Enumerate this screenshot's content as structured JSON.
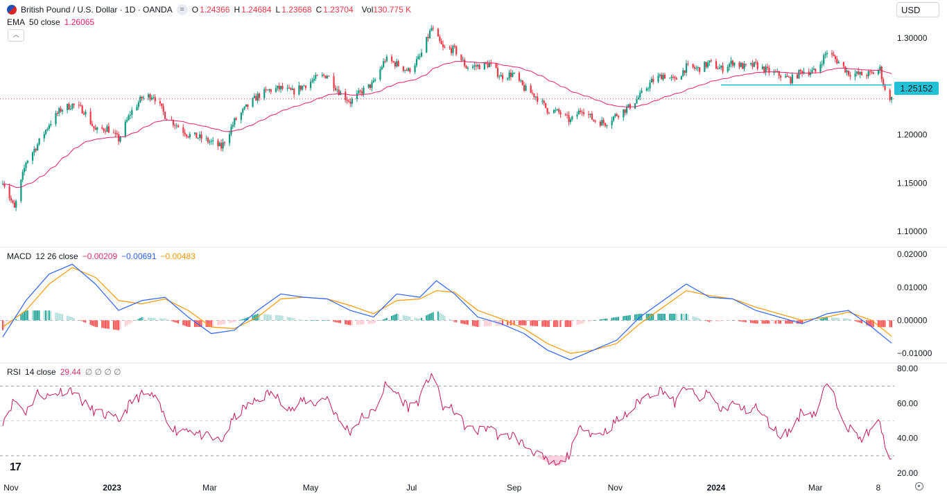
{
  "header": {
    "symbol": "British Pound / U.S. Dollar · 1D · OANDA",
    "ohlc": [
      {
        "k": "O",
        "v": "1.24366"
      },
      {
        "k": "H",
        "v": "1.24684"
      },
      {
        "k": "L",
        "v": "1.23668"
      },
      {
        "k": "C",
        "v": "1.23704"
      }
    ],
    "vol_label": "Vol",
    "vol_value": "130.775 K",
    "currency": "USD"
  },
  "ema_legend": {
    "name": "EMA",
    "params": "50 close",
    "value": "1.26065"
  },
  "macd_legend": {
    "name": "MACD",
    "params": "12 26 close",
    "hist": "−0.00209",
    "macd": "−0.00691",
    "signal": "−0.00483"
  },
  "rsi_legend": {
    "name": "RSI",
    "params": "14 close",
    "value": "29.44",
    "extra": "∅ ∅ ∅ ∅"
  },
  "price_tag": "1.25152",
  "colors": {
    "up": "#089981",
    "down": "#f23645",
    "ema": "#e91e63",
    "macd": "#2962ff",
    "signal": "#ff9800",
    "hist_up": "#26a69a",
    "hist_up_light": "#b2dfdb",
    "hist_down": "#ff5252",
    "hist_down_light": "#ffcdd2",
    "rsi": "#c2185b",
    "level_line": "#00bcd4",
    "grid": "#f0f3fa"
  },
  "chart_data": [
    {
      "type": "candlestick",
      "title": "British Pound / U.S. Dollar · 1D · OANDA",
      "ylim": [
        1.085,
        1.325
      ],
      "y_ticks": [
        "1.30000",
        "1.25000",
        "1.20000",
        "1.15000",
        "1.10000"
      ],
      "x_ticks": [
        "Nov",
        "2023",
        "Mar",
        "May",
        "Jul",
        "Sep",
        "Nov",
        "2024",
        "Mar",
        "8"
      ],
      "x_range": [
        "2022-10-27",
        "2024-04-16"
      ],
      "support_level": 1.25152,
      "last_close": 1.23704,
      "ema50_value": 1.26065,
      "path_close": [
        [
          "2022-10-27",
          1.153
        ],
        [
          "2022-11-03",
          1.123
        ],
        [
          "2022-11-10",
          1.172
        ],
        [
          "2022-11-17",
          1.19
        ],
        [
          "2022-11-24",
          1.211
        ],
        [
          "2022-12-01",
          1.226
        ],
        [
          "2022-12-08",
          1.231
        ],
        [
          "2022-12-15",
          1.225
        ],
        [
          "2022-12-22",
          1.204
        ],
        [
          "2022-12-29",
          1.207
        ],
        [
          "2023-01-05",
          1.195
        ],
        [
          "2023-01-12",
          1.222
        ],
        [
          "2023-01-19",
          1.238
        ],
        [
          "2023-01-26",
          1.241
        ],
        [
          "2023-02-02",
          1.22
        ],
        [
          "2023-02-09",
          1.21
        ],
        [
          "2023-02-16",
          1.2
        ],
        [
          "2023-02-23",
          1.197
        ],
        [
          "2023-03-02",
          1.192
        ],
        [
          "2023-03-08",
          1.187
        ],
        [
          "2023-03-16",
          1.214
        ],
        [
          "2023-03-23",
          1.228
        ],
        [
          "2023-03-30",
          1.24
        ],
        [
          "2023-04-06",
          1.246
        ],
        [
          "2023-04-13",
          1.248
        ],
        [
          "2023-04-20",
          1.244
        ],
        [
          "2023-04-27",
          1.251
        ],
        [
          "2023-05-04",
          1.258
        ],
        [
          "2023-05-11",
          1.262
        ],
        [
          "2023-05-18",
          1.245
        ],
        [
          "2023-05-25",
          1.234
        ],
        [
          "2023-06-01",
          1.245
        ],
        [
          "2023-06-08",
          1.253
        ],
        [
          "2023-06-15",
          1.278
        ],
        [
          "2023-06-22",
          1.273
        ],
        [
          "2023-06-29",
          1.266
        ],
        [
          "2023-07-06",
          1.28
        ],
        [
          "2023-07-13",
          1.31
        ],
        [
          "2023-07-20",
          1.289
        ],
        [
          "2023-07-27",
          1.288
        ],
        [
          "2023-08-03",
          1.27
        ],
        [
          "2023-08-10",
          1.271
        ],
        [
          "2023-08-17",
          1.273
        ],
        [
          "2023-08-24",
          1.26
        ],
        [
          "2023-08-31",
          1.263
        ],
        [
          "2023-09-07",
          1.248
        ],
        [
          "2023-09-14",
          1.24
        ],
        [
          "2023-09-21",
          1.226
        ],
        [
          "2023-09-28",
          1.223
        ],
        [
          "2023-10-05",
          1.214
        ],
        [
          "2023-10-12",
          1.227
        ],
        [
          "2023-10-19",
          1.215
        ],
        [
          "2023-10-26",
          1.212
        ],
        [
          "2023-11-02",
          1.221
        ],
        [
          "2023-11-09",
          1.228
        ],
        [
          "2023-11-16",
          1.24
        ],
        [
          "2023-11-23",
          1.255
        ],
        [
          "2023-11-30",
          1.262
        ],
        [
          "2023-12-07",
          1.256
        ],
        [
          "2023-12-14",
          1.27
        ],
        [
          "2023-12-21",
          1.268
        ],
        [
          "2023-12-28",
          1.274
        ],
        [
          "2024-01-04",
          1.268
        ],
        [
          "2024-01-11",
          1.275
        ],
        [
          "2024-01-18",
          1.27
        ],
        [
          "2024-01-25",
          1.272
        ],
        [
          "2024-02-01",
          1.266
        ],
        [
          "2024-02-08",
          1.262
        ],
        [
          "2024-02-15",
          1.257
        ],
        [
          "2024-02-22",
          1.266
        ],
        [
          "2024-03-01",
          1.265
        ],
        [
          "2024-03-08",
          1.286
        ],
        [
          "2024-03-15",
          1.275
        ],
        [
          "2024-03-21",
          1.264
        ],
        [
          "2024-03-28",
          1.262
        ],
        [
          "2024-04-04",
          1.263
        ],
        [
          "2024-04-09",
          1.268
        ],
        [
          "2024-04-12",
          1.245
        ],
        [
          "2024-04-16",
          1.237
        ]
      ]
    },
    {
      "type": "line",
      "title": "MACD 12 26 close",
      "ylim": [
        -0.0125,
        0.0215
      ],
      "y_ticks": [
        "0.02000",
        "0.01000",
        "0.00000",
        "−0.01000"
      ],
      "series": [
        {
          "name": "MACD",
          "path": [
            [
              "2022-10-27",
              -0.005
            ],
            [
              "2022-11-10",
              0.006
            ],
            [
              "2022-11-24",
              0.014
            ],
            [
              "2022-12-08",
              0.017
            ],
            [
              "2022-12-22",
              0.011
            ],
            [
              "2023-01-05",
              0.003
            ],
            [
              "2023-01-19",
              0.006
            ],
            [
              "2023-02-02",
              0.007
            ],
            [
              "2023-02-16",
              0.001
            ],
            [
              "2023-03-02",
              -0.004
            ],
            [
              "2023-03-16",
              -0.003
            ],
            [
              "2023-03-30",
              0.003
            ],
            [
              "2023-04-13",
              0.008
            ],
            [
              "2023-04-27",
              0.007
            ],
            [
              "2023-05-11",
              0.0065
            ],
            [
              "2023-05-25",
              0.003
            ],
            [
              "2023-06-08",
              0.001
            ],
            [
              "2023-06-22",
              0.008
            ],
            [
              "2023-07-06",
              0.007
            ],
            [
              "2023-07-16",
              0.012
            ],
            [
              "2023-07-27",
              0.008
            ],
            [
              "2023-08-10",
              0.001
            ],
            [
              "2023-08-24",
              -0.001
            ],
            [
              "2023-09-07",
              -0.004
            ],
            [
              "2023-09-21",
              -0.009
            ],
            [
              "2023-10-05",
              -0.012
            ],
            [
              "2023-10-19",
              -0.009
            ],
            [
              "2023-11-02",
              -0.006
            ],
            [
              "2023-11-16",
              0.001
            ],
            [
              "2023-11-30",
              0.006
            ],
            [
              "2023-12-14",
              0.011
            ],
            [
              "2023-12-28",
              0.007
            ],
            [
              "2024-01-11",
              0.0065
            ],
            [
              "2024-01-25",
              0.003
            ],
            [
              "2024-02-08",
              0.001
            ],
            [
              "2024-02-22",
              -0.001
            ],
            [
              "2024-03-08",
              0.002
            ],
            [
              "2024-03-21",
              0.003
            ],
            [
              "2024-04-04",
              -0.002
            ],
            [
              "2024-04-16",
              -0.0069
            ]
          ]
        },
        {
          "name": "Signal",
          "path": [
            [
              "2022-10-27",
              -0.002
            ],
            [
              "2022-11-10",
              0.003
            ],
            [
              "2022-11-24",
              0.011
            ],
            [
              "2022-12-08",
              0.016
            ],
            [
              "2022-12-22",
              0.013
            ],
            [
              "2023-01-05",
              0.006
            ],
            [
              "2023-01-19",
              0.005
            ],
            [
              "2023-02-02",
              0.0065
            ],
            [
              "2023-02-16",
              0.003
            ],
            [
              "2023-03-02",
              -0.002
            ],
            [
              "2023-03-16",
              -0.0025
            ],
            [
              "2023-03-30",
              0.001
            ],
            [
              "2023-04-13",
              0.0065
            ],
            [
              "2023-04-27",
              0.007
            ],
            [
              "2023-05-11",
              0.0065
            ],
            [
              "2023-05-25",
              0.0045
            ],
            [
              "2023-06-08",
              0.002
            ],
            [
              "2023-06-22",
              0.006
            ],
            [
              "2023-07-06",
              0.0065
            ],
            [
              "2023-07-16",
              0.009
            ],
            [
              "2023-07-27",
              0.0085
            ],
            [
              "2023-08-10",
              0.003
            ],
            [
              "2023-08-24",
              0.0005
            ],
            [
              "2023-09-07",
              -0.0025
            ],
            [
              "2023-09-21",
              -0.007
            ],
            [
              "2023-10-05",
              -0.01
            ],
            [
              "2023-10-19",
              -0.009
            ],
            [
              "2023-11-02",
              -0.007
            ],
            [
              "2023-11-16",
              -0.001
            ],
            [
              "2023-11-30",
              0.004
            ],
            [
              "2023-12-14",
              0.009
            ],
            [
              "2023-12-28",
              0.0075
            ],
            [
              "2024-01-11",
              0.0065
            ],
            [
              "2024-01-25",
              0.004
            ],
            [
              "2024-02-08",
              0.002
            ],
            [
              "2024-02-22",
              0.0
            ],
            [
              "2024-03-08",
              0.001
            ],
            [
              "2024-03-21",
              0.0025
            ],
            [
              "2024-04-04",
              0.0
            ],
            [
              "2024-04-16",
              -0.0048
            ]
          ]
        }
      ]
    },
    {
      "type": "line",
      "title": "RSI 14 close",
      "ylim": [
        18,
        82
      ],
      "y_ticks": [
        "80.00",
        "60.00",
        "40.00",
        "20.00"
      ],
      "levels": [
        70,
        50,
        30
      ],
      "series": [
        {
          "name": "RSI",
          "path": [
            [
              "2022-10-27",
              50
            ],
            [
              "2022-11-03",
              62
            ],
            [
              "2022-11-10",
              55
            ],
            [
              "2022-11-17",
              66
            ],
            [
              "2022-11-24",
              64
            ],
            [
              "2022-12-01",
              67
            ],
            [
              "2022-12-08",
              68
            ],
            [
              "2022-12-15",
              60
            ],
            [
              "2022-12-22",
              55
            ],
            [
              "2022-12-29",
              53
            ],
            [
              "2023-01-05",
              50
            ],
            [
              "2023-01-12",
              60
            ],
            [
              "2023-01-19",
              65
            ],
            [
              "2023-01-26",
              64
            ],
            [
              "2023-02-02",
              52
            ],
            [
              "2023-02-09",
              44
            ],
            [
              "2023-02-16",
              46
            ],
            [
              "2023-02-23",
              42
            ],
            [
              "2023-03-02",
              40
            ],
            [
              "2023-03-08",
              38
            ],
            [
              "2023-03-16",
              52
            ],
            [
              "2023-03-23",
              58
            ],
            [
              "2023-03-30",
              62
            ],
            [
              "2023-04-06",
              66
            ],
            [
              "2023-04-13",
              62
            ],
            [
              "2023-04-20",
              56
            ],
            [
              "2023-04-27",
              62
            ],
            [
              "2023-05-04",
              60
            ],
            [
              "2023-05-11",
              64
            ],
            [
              "2023-05-18",
              50
            ],
            [
              "2023-05-25",
              44
            ],
            [
              "2023-06-01",
              52
            ],
            [
              "2023-06-08",
              55
            ],
            [
              "2023-06-15",
              70
            ],
            [
              "2023-06-22",
              66
            ],
            [
              "2023-06-29",
              58
            ],
            [
              "2023-07-06",
              62
            ],
            [
              "2023-07-13",
              78
            ],
            [
              "2023-07-20",
              58
            ],
            [
              "2023-07-27",
              56
            ],
            [
              "2023-08-03",
              46
            ],
            [
              "2023-08-10",
              44
            ],
            [
              "2023-08-17",
              47
            ],
            [
              "2023-08-24",
              40
            ],
            [
              "2023-08-31",
              42
            ],
            [
              "2023-09-07",
              36
            ],
            [
              "2023-09-14",
              32
            ],
            [
              "2023-09-21",
              26
            ],
            [
              "2023-09-28",
              24
            ],
            [
              "2023-10-05",
              32
            ],
            [
              "2023-10-12",
              48
            ],
            [
              "2023-10-19",
              42
            ],
            [
              "2023-10-26",
              44
            ],
            [
              "2023-11-02",
              50
            ],
            [
              "2023-11-09",
              54
            ],
            [
              "2023-11-16",
              62
            ],
            [
              "2023-11-23",
              66
            ],
            [
              "2023-11-30",
              68
            ],
            [
              "2023-12-07",
              60
            ],
            [
              "2023-12-14",
              70
            ],
            [
              "2023-12-21",
              62
            ],
            [
              "2023-12-28",
              66
            ],
            [
              "2024-01-04",
              56
            ],
            [
              "2024-01-11",
              60
            ],
            [
              "2024-01-18",
              56
            ],
            [
              "2024-01-25",
              58
            ],
            [
              "2024-02-01",
              50
            ],
            [
              "2024-02-08",
              42
            ],
            [
              "2024-02-15",
              44
            ],
            [
              "2024-02-22",
              56
            ],
            [
              "2024-03-01",
              54
            ],
            [
              "2024-03-08",
              72
            ],
            [
              "2024-03-15",
              58
            ],
            [
              "2024-03-21",
              46
            ],
            [
              "2024-03-28",
              40
            ],
            [
              "2024-04-04",
              44
            ],
            [
              "2024-04-09",
              50
            ],
            [
              "2024-04-12",
              34
            ],
            [
              "2024-04-16",
              29.44
            ]
          ]
        }
      ]
    }
  ]
}
